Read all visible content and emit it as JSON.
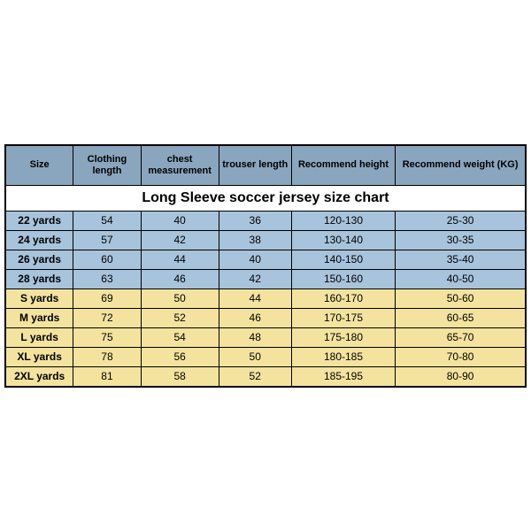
{
  "title": "Long Sleeve soccer jersey size chart",
  "columns": [
    "Size",
    "Clothing length",
    "chest measurement",
    "trouser length",
    "Recommend height",
    "Recommend weight (KG)"
  ],
  "col_widths_pct": [
    13,
    13,
    15,
    14,
    20,
    25
  ],
  "colors": {
    "header_bg": "#8aa6be",
    "row_blue": "#a8c3dc",
    "row_yellow": "#f3e39e",
    "border": "#000000",
    "page_bg": "#ffffff"
  },
  "rows": [
    {
      "k": "blue",
      "c": [
        "22 yards",
        "54",
        "40",
        "36",
        "120-130",
        "25-30"
      ]
    },
    {
      "k": "blue",
      "c": [
        "24 yards",
        "57",
        "42",
        "38",
        "130-140",
        "30-35"
      ]
    },
    {
      "k": "blue",
      "c": [
        "26 yards",
        "60",
        "44",
        "40",
        "140-150",
        "35-40"
      ]
    },
    {
      "k": "blue",
      "c": [
        "28 yards",
        "63",
        "46",
        "42",
        "150-160",
        "40-50"
      ]
    },
    {
      "k": "yellow",
      "c": [
        "S yards",
        "69",
        "50",
        "44",
        "160-170",
        "50-60"
      ]
    },
    {
      "k": "yellow",
      "c": [
        "M yards",
        "72",
        "52",
        "46",
        "170-175",
        "60-65"
      ]
    },
    {
      "k": "yellow",
      "c": [
        "L yards",
        "75",
        "54",
        "48",
        "175-180",
        "65-70"
      ]
    },
    {
      "k": "yellow",
      "c": [
        "XL yards",
        "78",
        "56",
        "50",
        "180-185",
        "70-80"
      ]
    },
    {
      "k": "yellow",
      "c": [
        "2XL yards",
        "81",
        "58",
        "52",
        "185-195",
        "80-90"
      ]
    }
  ]
}
